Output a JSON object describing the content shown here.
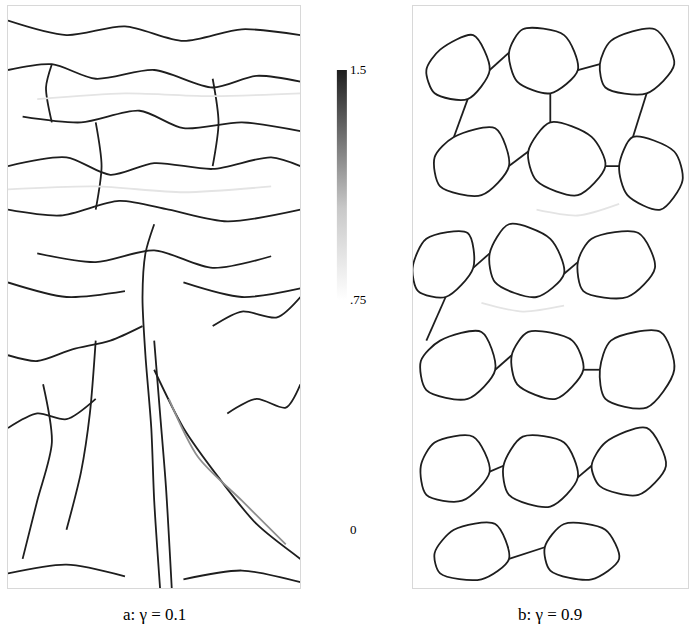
{
  "chart_data": [
    {
      "type": "streaks",
      "title": "a: γ = 0.1",
      "xlim": [
        0,
        1
      ],
      "ylim": [
        0,
        2
      ],
      "tick_labels": false,
      "colorbar": {
        "range": [
          0,
          1.5
        ],
        "ticks": [
          0,
          {
            "value": 0.75,
            "label": ".75"
          },
          1.5
        ]
      },
      "streaks": [
        {
          "value": 1.5,
          "x": [
            0.52,
            0.5,
            0.49,
            0.47,
            0.46,
            0.47,
            0.5
          ],
          "y": [
            0.0,
            0.3,
            0.55,
            0.8,
            1.0,
            1.15,
            1.25
          ]
        },
        {
          "value": 1.5,
          "x": [
            0.56,
            0.54,
            0.52,
            0.5
          ],
          "y": [
            0.0,
            0.35,
            0.6,
            0.85
          ]
        },
        {
          "value": 1.5,
          "x": [
            0.5,
            0.6,
            0.72,
            0.85,
            1.0
          ],
          "y": [
            0.75,
            0.55,
            0.38,
            0.22,
            0.1
          ]
        },
        {
          "value": 1.2,
          "x": [
            0.55,
            0.65,
            0.8,
            0.95
          ],
          "y": [
            0.65,
            0.45,
            0.3,
            0.15
          ]
        },
        {
          "value": 1.5,
          "x": [
            0.46,
            0.35,
            0.22,
            0.1,
            0.0
          ],
          "y": [
            0.9,
            0.85,
            0.82,
            0.78,
            0.8
          ]
        },
        {
          "value": 1.5,
          "x": [
            0.3,
            0.28,
            0.25,
            0.2
          ],
          "y": [
            0.85,
            0.6,
            0.4,
            0.2
          ]
        },
        {
          "value": 1.5,
          "x": [
            0.0,
            0.1,
            0.2,
            0.3
          ],
          "y": [
            0.55,
            0.6,
            0.58,
            0.65
          ]
        },
        {
          "value": 1.5,
          "x": [
            0.05,
            0.1,
            0.15,
            0.12
          ],
          "y": [
            0.1,
            0.3,
            0.5,
            0.7
          ]
        },
        {
          "value": 1.5,
          "x": [
            0.0,
            0.2,
            0.4
          ],
          "y": [
            0.05,
            0.08,
            0.04
          ]
        },
        {
          "value": 1.5,
          "x": [
            0.6,
            0.8,
            1.0
          ],
          "y": [
            0.03,
            0.06,
            0.02
          ]
        },
        {
          "value": 1.5,
          "x": [
            0.75,
            0.85,
            0.95,
            1.0
          ],
          "y": [
            0.6,
            0.65,
            0.62,
            0.7
          ]
        },
        {
          "value": 1.5,
          "x": [
            0.7,
            0.8,
            0.92,
            1.0
          ],
          "y": [
            0.9,
            0.95,
            0.93,
            1.0
          ]
        },
        {
          "value": 1.5,
          "x": [
            0.0,
            0.2,
            0.4,
            0.6,
            0.8,
            1.0
          ],
          "y": [
            1.95,
            1.9,
            1.93,
            1.88,
            1.92,
            1.9
          ]
        },
        {
          "value": 1.5,
          "x": [
            0.0,
            0.15,
            0.3,
            0.5,
            0.7,
            0.85,
            1.0
          ],
          "y": [
            1.78,
            1.8,
            1.75,
            1.78,
            1.72,
            1.76,
            1.74
          ]
        },
        {
          "value": 1.5,
          "x": [
            0.05,
            0.25,
            0.45,
            0.6,
            0.8,
            1.0
          ],
          "y": [
            1.62,
            1.6,
            1.64,
            1.58,
            1.6,
            1.57
          ]
        },
        {
          "value": 1.5,
          "x": [
            0.0,
            0.2,
            0.35,
            0.5,
            0.7,
            0.9,
            1.0
          ],
          "y": [
            1.45,
            1.48,
            1.42,
            1.46,
            1.44,
            1.48,
            1.45
          ]
        },
        {
          "value": 1.5,
          "x": [
            0.0,
            0.18,
            0.38,
            0.55,
            0.75,
            1.0
          ],
          "y": [
            1.3,
            1.28,
            1.33,
            1.3,
            1.26,
            1.3
          ]
        },
        {
          "value": 1.5,
          "x": [
            0.1,
            0.3,
            0.5,
            0.7,
            0.9
          ],
          "y": [
            1.15,
            1.12,
            1.16,
            1.1,
            1.14
          ]
        },
        {
          "value": 1.5,
          "x": [
            0.0,
            0.2,
            0.4
          ],
          "y": [
            1.05,
            1.0,
            1.02
          ]
        },
        {
          "value": 1.5,
          "x": [
            0.6,
            0.8,
            1.0
          ],
          "y": [
            1.05,
            1.0,
            1.03
          ]
        },
        {
          "value": 1.5,
          "x": [
            0.3,
            0.32,
            0.3
          ],
          "y": [
            1.3,
            1.45,
            1.6
          ]
        },
        {
          "value": 1.5,
          "x": [
            0.7,
            0.72,
            0.7
          ],
          "y": [
            1.45,
            1.6,
            1.75
          ]
        },
        {
          "value": 1.5,
          "x": [
            0.15,
            0.13,
            0.15
          ],
          "y": [
            1.6,
            1.72,
            1.8
          ]
        },
        {
          "value": 0.9,
          "x": [
            0.0,
            0.3,
            0.6,
            0.9
          ],
          "y": [
            1.37,
            1.38,
            1.36,
            1.38
          ]
        },
        {
          "value": 0.9,
          "x": [
            0.1,
            0.4,
            0.7,
            1.0
          ],
          "y": [
            1.68,
            1.7,
            1.69,
            1.7
          ]
        }
      ]
    },
    {
      "type": "streaks",
      "title": "b: γ = 0.9",
      "xlim": [
        0,
        1
      ],
      "ylim": [
        0,
        2
      ],
      "tick_labels": false,
      "streaks": [
        {
          "value": 1.5,
          "x": [
            0.1,
            0.22,
            0.28,
            0.2,
            0.08,
            0.05,
            0.1
          ],
          "y": [
            1.85,
            1.9,
            1.78,
            1.68,
            1.7,
            1.78,
            1.85
          ]
        },
        {
          "value": 1.5,
          "x": [
            0.4,
            0.55,
            0.6,
            0.5,
            0.38,
            0.35,
            0.4
          ],
          "y": [
            1.92,
            1.9,
            1.78,
            1.7,
            1.74,
            1.84,
            1.92
          ]
        },
        {
          "value": 1.5,
          "x": [
            0.72,
            0.88,
            0.95,
            0.85,
            0.7,
            0.68,
            0.72
          ],
          "y": [
            1.88,
            1.92,
            1.8,
            1.7,
            1.72,
            1.8,
            1.88
          ]
        },
        {
          "value": 1.5,
          "x": [
            0.15,
            0.3,
            0.35,
            0.25,
            0.1,
            0.08,
            0.15
          ],
          "y": [
            1.55,
            1.58,
            1.45,
            1.35,
            1.38,
            1.48,
            1.55
          ]
        },
        {
          "value": 1.5,
          "x": [
            0.5,
            0.65,
            0.7,
            0.6,
            0.45,
            0.42,
            0.5
          ],
          "y": [
            1.6,
            1.55,
            1.45,
            1.35,
            1.4,
            1.5,
            1.6
          ]
        },
        {
          "value": 1.5,
          "x": [
            0.8,
            0.95,
            0.98,
            0.9,
            0.78,
            0.75,
            0.8
          ],
          "y": [
            1.55,
            1.5,
            1.4,
            1.3,
            1.35,
            1.45,
            1.55
          ]
        },
        {
          "value": 1.5,
          "x": [
            0.05,
            0.2,
            0.22,
            0.12,
            0.02,
            0.0,
            0.05
          ],
          "y": [
            1.2,
            1.22,
            1.1,
            1.0,
            1.02,
            1.1,
            1.2
          ]
        },
        {
          "value": 1.5,
          "x": [
            0.35,
            0.5,
            0.55,
            0.45,
            0.3,
            0.28,
            0.35
          ],
          "y": [
            1.25,
            1.2,
            1.08,
            1.0,
            1.05,
            1.15,
            1.25
          ]
        },
        {
          "value": 1.5,
          "x": [
            0.65,
            0.82,
            0.88,
            0.78,
            0.62,
            0.6,
            0.65
          ],
          "y": [
            1.2,
            1.22,
            1.1,
            1.0,
            1.02,
            1.12,
            1.2
          ]
        },
        {
          "value": 1.5,
          "x": [
            0.1,
            0.25,
            0.3,
            0.2,
            0.05,
            0.03,
            0.1
          ],
          "y": [
            0.85,
            0.88,
            0.75,
            0.65,
            0.68,
            0.78,
            0.85
          ]
        },
        {
          "value": 1.5,
          "x": [
            0.42,
            0.58,
            0.62,
            0.52,
            0.38,
            0.36,
            0.42
          ],
          "y": [
            0.88,
            0.85,
            0.75,
            0.65,
            0.7,
            0.8,
            0.88
          ]
        },
        {
          "value": 1.5,
          "x": [
            0.72,
            0.9,
            0.95,
            0.85,
            0.7,
            0.68,
            0.72
          ],
          "y": [
            0.85,
            0.88,
            0.75,
            0.62,
            0.65,
            0.75,
            0.85
          ]
        },
        {
          "value": 1.5,
          "x": [
            0.08,
            0.22,
            0.28,
            0.18,
            0.05,
            0.03,
            0.08
          ],
          "y": [
            0.5,
            0.52,
            0.4,
            0.3,
            0.32,
            0.42,
            0.5
          ]
        },
        {
          "value": 1.5,
          "x": [
            0.4,
            0.55,
            0.6,
            0.5,
            0.35,
            0.33,
            0.4
          ],
          "y": [
            0.52,
            0.5,
            0.38,
            0.28,
            0.32,
            0.42,
            0.52
          ]
        },
        {
          "value": 1.5,
          "x": [
            0.7,
            0.85,
            0.92,
            0.82,
            0.68,
            0.65,
            0.7
          ],
          "y": [
            0.5,
            0.55,
            0.42,
            0.32,
            0.35,
            0.42,
            0.5
          ]
        },
        {
          "value": 1.5,
          "x": [
            0.15,
            0.3,
            0.35,
            0.25,
            0.1,
            0.08,
            0.15
          ],
          "y": [
            0.2,
            0.22,
            0.1,
            0.03,
            0.05,
            0.12,
            0.2
          ]
        },
        {
          "value": 1.5,
          "x": [
            0.55,
            0.7,
            0.75,
            0.65,
            0.5,
            0.48,
            0.55
          ],
          "y": [
            0.22,
            0.2,
            0.1,
            0.03,
            0.06,
            0.14,
            0.22
          ]
        },
        {
          "value": 1.5,
          "x": [
            0.28,
            0.35
          ],
          "y": [
            1.78,
            1.84
          ]
        },
        {
          "value": 1.5,
          "x": [
            0.6,
            0.68
          ],
          "y": [
            1.78,
            1.8
          ]
        },
        {
          "value": 1.5,
          "x": [
            0.35,
            0.42
          ],
          "y": [
            1.45,
            1.5
          ]
        },
        {
          "value": 1.5,
          "x": [
            0.7,
            0.75
          ],
          "y": [
            1.45,
            1.45
          ]
        },
        {
          "value": 1.5,
          "x": [
            0.22,
            0.28
          ],
          "y": [
            1.1,
            1.15
          ]
        },
        {
          "value": 1.5,
          "x": [
            0.55,
            0.6
          ],
          "y": [
            1.08,
            1.12
          ]
        },
        {
          "value": 1.5,
          "x": [
            0.3,
            0.36
          ],
          "y": [
            0.75,
            0.8
          ]
        },
        {
          "value": 1.5,
          "x": [
            0.62,
            0.68
          ],
          "y": [
            0.75,
            0.75
          ]
        },
        {
          "value": 1.5,
          "x": [
            0.28,
            0.33
          ],
          "y": [
            0.4,
            0.42
          ]
        },
        {
          "value": 1.5,
          "x": [
            0.6,
            0.65
          ],
          "y": [
            0.38,
            0.42
          ]
        },
        {
          "value": 1.5,
          "x": [
            0.35,
            0.48
          ],
          "y": [
            0.1,
            0.14
          ]
        },
        {
          "value": 1.5,
          "x": [
            0.2,
            0.15
          ],
          "y": [
            1.68,
            1.55
          ]
        },
        {
          "value": 1.5,
          "x": [
            0.5,
            0.5
          ],
          "y": [
            1.7,
            1.6
          ]
        },
        {
          "value": 1.5,
          "x": [
            0.85,
            0.8
          ],
          "y": [
            1.7,
            1.55
          ]
        },
        {
          "value": 1.5,
          "x": [
            0.12,
            0.05
          ],
          "y": [
            1.0,
            0.85
          ]
        },
        {
          "value": 0.9,
          "x": [
            0.25,
            0.4,
            0.55
          ],
          "y": [
            0.98,
            0.95,
            0.97
          ]
        },
        {
          "value": 0.9,
          "x": [
            0.45,
            0.6,
            0.75
          ],
          "y": [
            1.3,
            1.28,
            1.32
          ]
        }
      ]
    }
  ]
}
